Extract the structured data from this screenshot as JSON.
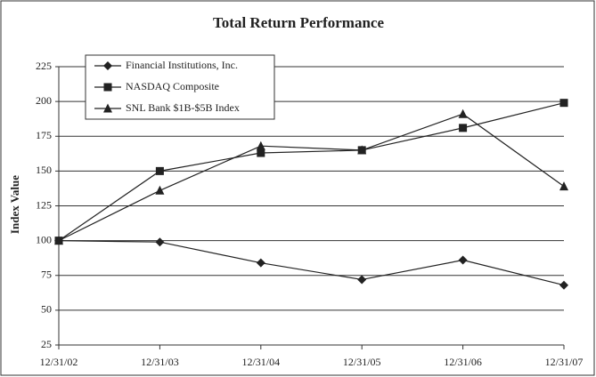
{
  "chart_data": {
    "type": "line",
    "title": "Total Return Performance",
    "y_label": "Index Value",
    "categories": [
      "12/31/02",
      "12/31/03",
      "12/31/04",
      "12/31/05",
      "12/31/06",
      "12/31/07"
    ],
    "series": [
      {
        "name": "Financial Institutions, Inc.",
        "color": "#222222",
        "marker": "diamond",
        "values": [
          100,
          99,
          84,
          72,
          86,
          68
        ]
      },
      {
        "name": "NASDAQ Composite",
        "color": "#222222",
        "marker": "square",
        "values": [
          100,
          150,
          163,
          165,
          181,
          199
        ]
      },
      {
        "name": "SNL Bank $1B-$5B Index",
        "color": "#222222",
        "marker": "triangle",
        "values": [
          100,
          136,
          168,
          165,
          191,
          139
        ]
      }
    ],
    "ylim": [
      25,
      225
    ],
    "yticks": [
      25,
      50,
      75,
      100,
      125,
      150,
      175,
      200,
      225
    ],
    "grid": true,
    "legend": "upper left"
  }
}
